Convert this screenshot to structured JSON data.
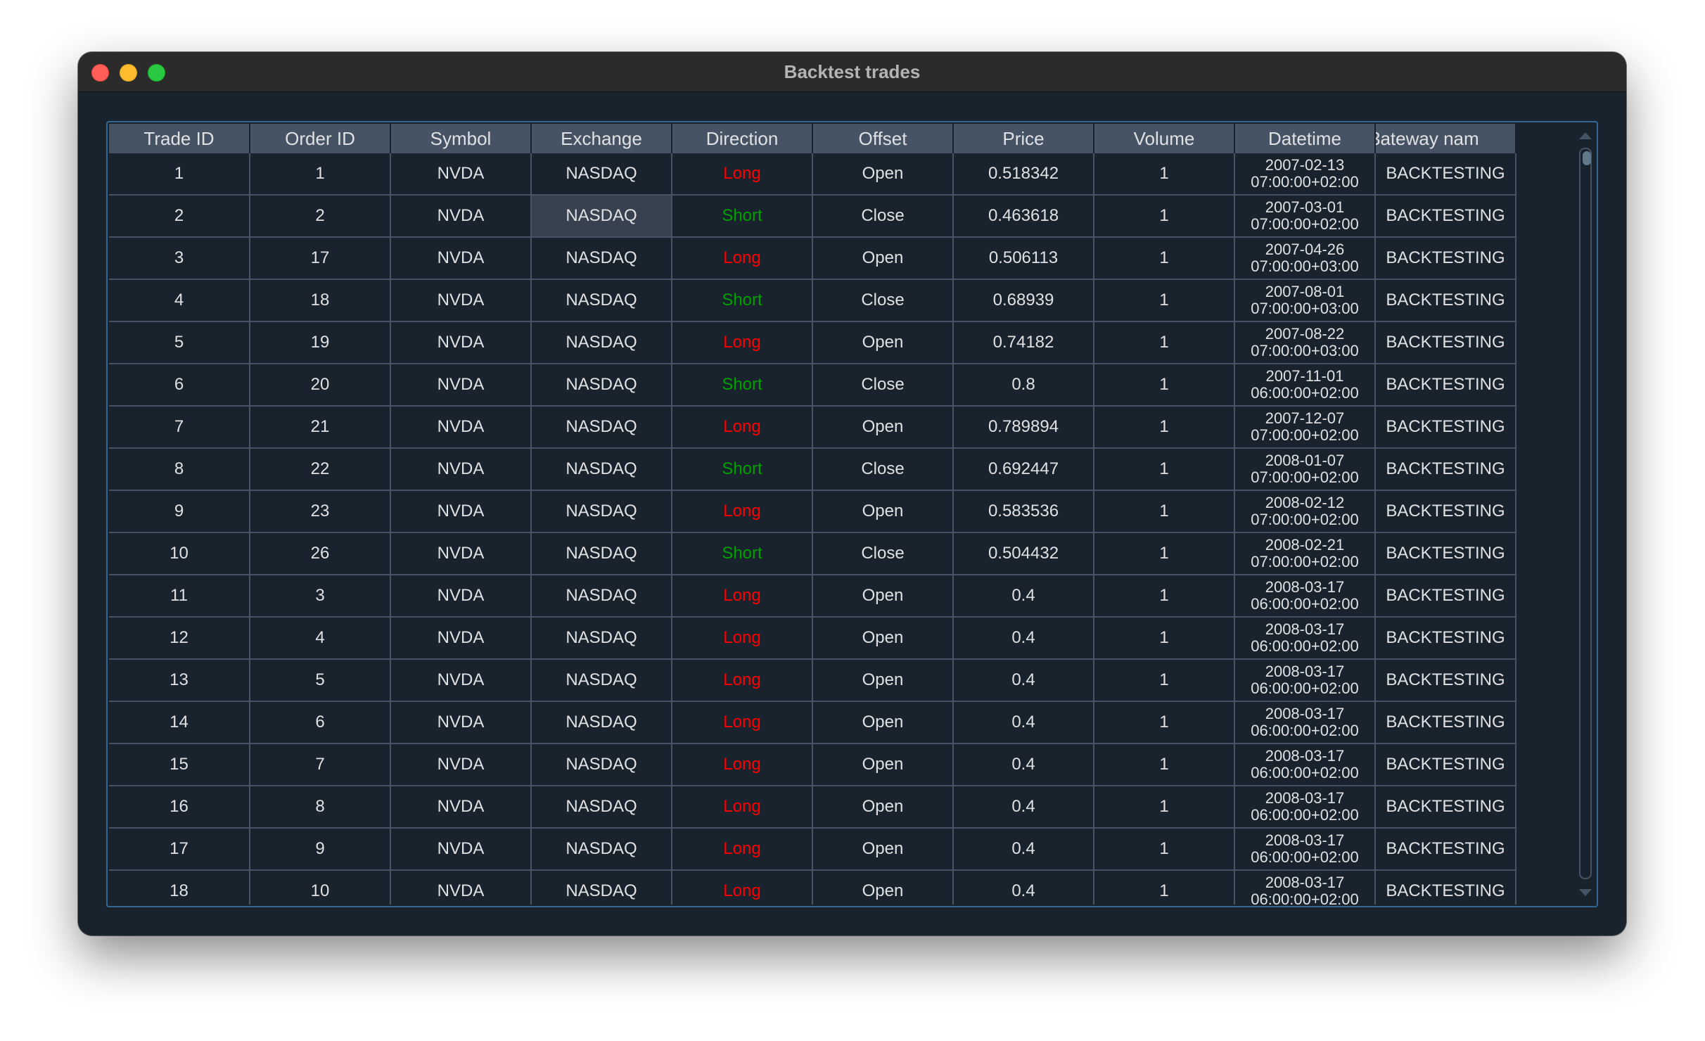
{
  "window": {
    "title": "Backtest trades"
  },
  "table": {
    "columns": [
      "Trade ID",
      "Order ID",
      "Symbol",
      "Exchange",
      "Direction",
      "Offset",
      "Price",
      "Volume",
      "Datetime",
      "Gateway name"
    ],
    "visible_last_header": "3ateway nam",
    "rows": [
      {
        "trade_id": "1",
        "order_id": "1",
        "symbol": "NVDA",
        "exchange": "NASDAQ",
        "direction": "Long",
        "offset": "Open",
        "price": "0.518342",
        "volume": "1",
        "date": "2007-02-13",
        "time": "07:00:00+02:00",
        "gateway": "BACKTESTING"
      },
      {
        "trade_id": "2",
        "order_id": "2",
        "symbol": "NVDA",
        "exchange": "NASDAQ",
        "direction": "Short",
        "offset": "Close",
        "price": "0.463618",
        "volume": "1",
        "date": "2007-03-01",
        "time": "07:00:00+02:00",
        "gateway": "BACKTESTING"
      },
      {
        "trade_id": "3",
        "order_id": "17",
        "symbol": "NVDA",
        "exchange": "NASDAQ",
        "direction": "Long",
        "offset": "Open",
        "price": "0.506113",
        "volume": "1",
        "date": "2007-04-26",
        "time": "07:00:00+03:00",
        "gateway": "BACKTESTING"
      },
      {
        "trade_id": "4",
        "order_id": "18",
        "symbol": "NVDA",
        "exchange": "NASDAQ",
        "direction": "Short",
        "offset": "Close",
        "price": "0.68939",
        "volume": "1",
        "date": "2007-08-01",
        "time": "07:00:00+03:00",
        "gateway": "BACKTESTING"
      },
      {
        "trade_id": "5",
        "order_id": "19",
        "symbol": "NVDA",
        "exchange": "NASDAQ",
        "direction": "Long",
        "offset": "Open",
        "price": "0.74182",
        "volume": "1",
        "date": "2007-08-22",
        "time": "07:00:00+03:00",
        "gateway": "BACKTESTING"
      },
      {
        "trade_id": "6",
        "order_id": "20",
        "symbol": "NVDA",
        "exchange": "NASDAQ",
        "direction": "Short",
        "offset": "Close",
        "price": "0.8",
        "volume": "1",
        "date": "2007-11-01",
        "time": "06:00:00+02:00",
        "gateway": "BACKTESTING"
      },
      {
        "trade_id": "7",
        "order_id": "21",
        "symbol": "NVDA",
        "exchange": "NASDAQ",
        "direction": "Long",
        "offset": "Open",
        "price": "0.789894",
        "volume": "1",
        "date": "2007-12-07",
        "time": "07:00:00+02:00",
        "gateway": "BACKTESTING"
      },
      {
        "trade_id": "8",
        "order_id": "22",
        "symbol": "NVDA",
        "exchange": "NASDAQ",
        "direction": "Short",
        "offset": "Close",
        "price": "0.692447",
        "volume": "1",
        "date": "2008-01-07",
        "time": "07:00:00+02:00",
        "gateway": "BACKTESTING"
      },
      {
        "trade_id": "9",
        "order_id": "23",
        "symbol": "NVDA",
        "exchange": "NASDAQ",
        "direction": "Long",
        "offset": "Open",
        "price": "0.583536",
        "volume": "1",
        "date": "2008-02-12",
        "time": "07:00:00+02:00",
        "gateway": "BACKTESTING"
      },
      {
        "trade_id": "10",
        "order_id": "26",
        "symbol": "NVDA",
        "exchange": "NASDAQ",
        "direction": "Short",
        "offset": "Close",
        "price": "0.504432",
        "volume": "1",
        "date": "2008-02-21",
        "time": "07:00:00+02:00",
        "gateway": "BACKTESTING"
      },
      {
        "trade_id": "11",
        "order_id": "3",
        "symbol": "NVDA",
        "exchange": "NASDAQ",
        "direction": "Long",
        "offset": "Open",
        "price": "0.4",
        "volume": "1",
        "date": "2008-03-17",
        "time": "06:00:00+02:00",
        "gateway": "BACKTESTING"
      },
      {
        "trade_id": "12",
        "order_id": "4",
        "symbol": "NVDA",
        "exchange": "NASDAQ",
        "direction": "Long",
        "offset": "Open",
        "price": "0.4",
        "volume": "1",
        "date": "2008-03-17",
        "time": "06:00:00+02:00",
        "gateway": "BACKTESTING"
      },
      {
        "trade_id": "13",
        "order_id": "5",
        "symbol": "NVDA",
        "exchange": "NASDAQ",
        "direction": "Long",
        "offset": "Open",
        "price": "0.4",
        "volume": "1",
        "date": "2008-03-17",
        "time": "06:00:00+02:00",
        "gateway": "BACKTESTING"
      },
      {
        "trade_id": "14",
        "order_id": "6",
        "symbol": "NVDA",
        "exchange": "NASDAQ",
        "direction": "Long",
        "offset": "Open",
        "price": "0.4",
        "volume": "1",
        "date": "2008-03-17",
        "time": "06:00:00+02:00",
        "gateway": "BACKTESTING"
      },
      {
        "trade_id": "15",
        "order_id": "7",
        "symbol": "NVDA",
        "exchange": "NASDAQ",
        "direction": "Long",
        "offset": "Open",
        "price": "0.4",
        "volume": "1",
        "date": "2008-03-17",
        "time": "06:00:00+02:00",
        "gateway": "BACKTESTING"
      },
      {
        "trade_id": "16",
        "order_id": "8",
        "symbol": "NVDA",
        "exchange": "NASDAQ",
        "direction": "Long",
        "offset": "Open",
        "price": "0.4",
        "volume": "1",
        "date": "2008-03-17",
        "time": "06:00:00+02:00",
        "gateway": "BACKTESTING"
      },
      {
        "trade_id": "17",
        "order_id": "9",
        "symbol": "NVDA",
        "exchange": "NASDAQ",
        "direction": "Long",
        "offset": "Open",
        "price": "0.4",
        "volume": "1",
        "date": "2008-03-17",
        "time": "06:00:00+02:00",
        "gateway": "BACKTESTING"
      },
      {
        "trade_id": "18",
        "order_id": "10",
        "symbol": "NVDA",
        "exchange": "NASDAQ",
        "direction": "Long",
        "offset": "Open",
        "price": "0.4",
        "volume": "1",
        "date": "2008-03-17",
        "time": "06:00:00+02:00",
        "gateway": "BACKTESTING"
      }
    ],
    "selected_cell": {
      "row": 1,
      "column": "Exchange"
    }
  },
  "colors": {
    "long": "#ff0000",
    "short": "#00a000",
    "background": "#19232d",
    "header": "#455364",
    "accent_border": "#346792"
  },
  "icons": [
    "close-window-icon",
    "minimize-window-icon",
    "maximize-window-icon",
    "scroll-up-arrow-icon",
    "scroll-down-arrow-icon"
  ]
}
